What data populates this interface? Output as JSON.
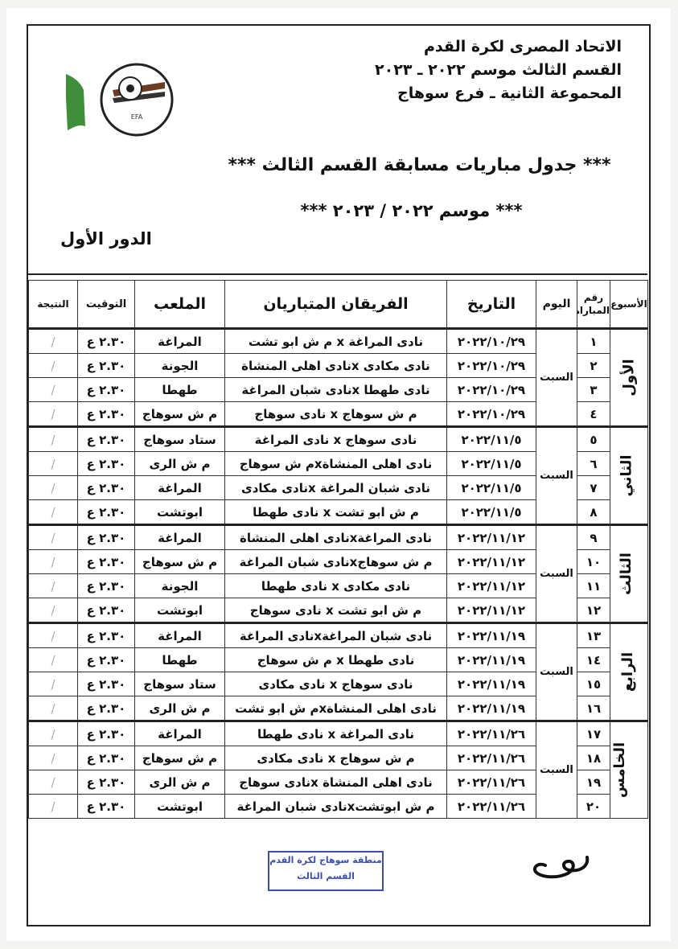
{
  "header": {
    "line1": "الاتحاد المصرى لكرة القدم",
    "line2": "القسم الثالث موسم ٢٠٢٢ ـ ٢٠٢٣",
    "line3": "المحموعة الثانية ـ فرع سوهاج",
    "title": "*** جدول مباريات مسابقة القسم الثالث ***",
    "season": "*** موسم ٢٠٢٢ / ٢٠٢٣ ***",
    "round": "الدور الأول",
    "logo_text": "الاتحاد المصرى لكرة القدم EGYPTIAN FA"
  },
  "columns": {
    "week": "الأسبوع",
    "match_no": "رقم المباراة",
    "day": "اليوم",
    "date": "التاريخ",
    "teams": "الفريقان المتباريان",
    "stadium": "الملعب",
    "time": "التوقيت",
    "result": "النتيجة"
  },
  "weeks": [
    {
      "name": "الأول",
      "day": "السبت",
      "matches": [
        {
          "num": "١",
          "date": "٢٠٢٢/١٠/٢٩",
          "teams": "نادى المراغة x م ش ابو تشت",
          "stadium": "المراغة",
          "time": "٢.٣٠ ع",
          "result": "/"
        },
        {
          "num": "٢",
          "date": "٢٠٢٢/١٠/٢٩",
          "teams": "نادى مكادى xنادى اهلى المنشاة",
          "stadium": "الجونة",
          "time": "٢.٣٠ ع",
          "result": "/"
        },
        {
          "num": "٣",
          "date": "٢٠٢٢/١٠/٢٩",
          "teams": "نادى طهطا xنادى شبان المراغة",
          "stadium": "طهطا",
          "time": "٢.٣٠ ع",
          "result": "/"
        },
        {
          "num": "٤",
          "date": "٢٠٢٢/١٠/٢٩",
          "teams": "م ش سوهاج x نادى سوهاج",
          "stadium": "م ش سوهاج",
          "time": "٢.٣٠ ع",
          "result": "/"
        }
      ]
    },
    {
      "name": "الثاني",
      "day": "السبت",
      "matches": [
        {
          "num": "٥",
          "date": "٢٠٢٢/١١/٥",
          "teams": "نادى سوهاج x نادى المراغة",
          "stadium": "ستاد سوهاج",
          "time": "٢.٣٠ ع",
          "result": "/"
        },
        {
          "num": "٦",
          "date": "٢٠٢٢/١١/٥",
          "teams": "نادى اهلى المنشاةxم ش سوهاج",
          "stadium": "م ش الرى",
          "time": "٢.٣٠ ع",
          "result": "/"
        },
        {
          "num": "٧",
          "date": "٢٠٢٢/١١/٥",
          "teams": "نادى شبان المراغة xنادى مكادى",
          "stadium": "المراغة",
          "time": "٢.٣٠ ع",
          "result": "/"
        },
        {
          "num": "٨",
          "date": "٢٠٢٢/١١/٥",
          "teams": "م ش ابو تشت x نادى طهطا",
          "stadium": "ابوتشت",
          "time": "٢.٣٠ ع",
          "result": "/"
        }
      ]
    },
    {
      "name": "الثالث",
      "day": "السبت",
      "matches": [
        {
          "num": "٩",
          "date": "٢٠٢٢/١١/١٢",
          "teams": "نادى المراغةxنادى اهلى المنشاة",
          "stadium": "المراغة",
          "time": "٢.٣٠ ع",
          "result": "/"
        },
        {
          "num": "١٠",
          "date": "٢٠٢٢/١١/١٢",
          "teams": "م ش سوهاجxنادى شبان المراغة",
          "stadium": "م ش سوهاج",
          "time": "٢.٣٠ ع",
          "result": "/"
        },
        {
          "num": "١١",
          "date": "٢٠٢٢/١١/١٢",
          "teams": "نادى مكادى x نادى طهطا",
          "stadium": "الجونة",
          "time": "٢.٣٠ ع",
          "result": "/"
        },
        {
          "num": "١٢",
          "date": "٢٠٢٢/١١/١٢",
          "teams": "م ش ابو تشت x نادى سوهاج",
          "stadium": "ابوتشت",
          "time": "٢.٣٠ ع",
          "result": "/"
        }
      ]
    },
    {
      "name": "الرابع",
      "day": "السبت",
      "matches": [
        {
          "num": "١٣",
          "date": "٢٠٢٢/١١/١٩",
          "teams": "نادى شبان المراغةxنادى المراغة",
          "stadium": "المراغة",
          "time": "٢.٣٠ ع",
          "result": "/"
        },
        {
          "num": "١٤",
          "date": "٢٠٢٢/١١/١٩",
          "teams": "نادى طهطا x م ش سوهاج",
          "stadium": "طهطا",
          "time": "٢.٣٠ ع",
          "result": "/"
        },
        {
          "num": "١٥",
          "date": "٢٠٢٢/١١/١٩",
          "teams": "نادى سوهاج x نادى مكادى",
          "stadium": "ستاد سوهاج",
          "time": "٢.٣٠ ع",
          "result": "/"
        },
        {
          "num": "١٦",
          "date": "٢٠٢٢/١١/١٩",
          "teams": "نادى اهلى المنشاةxم ش ابو تشت",
          "stadium": "م ش الرى",
          "time": "٢.٣٠ ع",
          "result": "/"
        }
      ]
    },
    {
      "name": "الخامس",
      "day": "السبت",
      "matches": [
        {
          "num": "١٧",
          "date": "٢٠٢٢/١١/٢٦",
          "teams": "نادى المراغة x نادى طهطا",
          "stadium": "المراغة",
          "time": "٢.٣٠ ع",
          "result": "/"
        },
        {
          "num": "١٨",
          "date": "٢٠٢٢/١١/٢٦",
          "teams": "م ش سوهاج x نادى مكادى",
          "stadium": "م ش سوهاج",
          "time": "٢.٣٠ ع",
          "result": "/"
        },
        {
          "num": "١٩",
          "date": "٢٠٢٢/١١/٢٦",
          "teams": "نادى اهلى المنشاة xنادى سوهاج",
          "stadium": "م ش الرى",
          "time": "٢.٣٠ ع",
          "result": "/"
        },
        {
          "num": "٢٠",
          "date": "٢٠٢٢/١١/٢٦",
          "teams": "م ش ابوتشتxنادى شبان المراغة",
          "stadium": "ابوتشت",
          "time": "٢.٣٠ ع",
          "result": "/"
        }
      ]
    }
  ],
  "stamp": {
    "line1": "منطقة سوهاج لكرة القدم",
    "line2": "القسم الثالث",
    "color": "#3a4fb0"
  }
}
